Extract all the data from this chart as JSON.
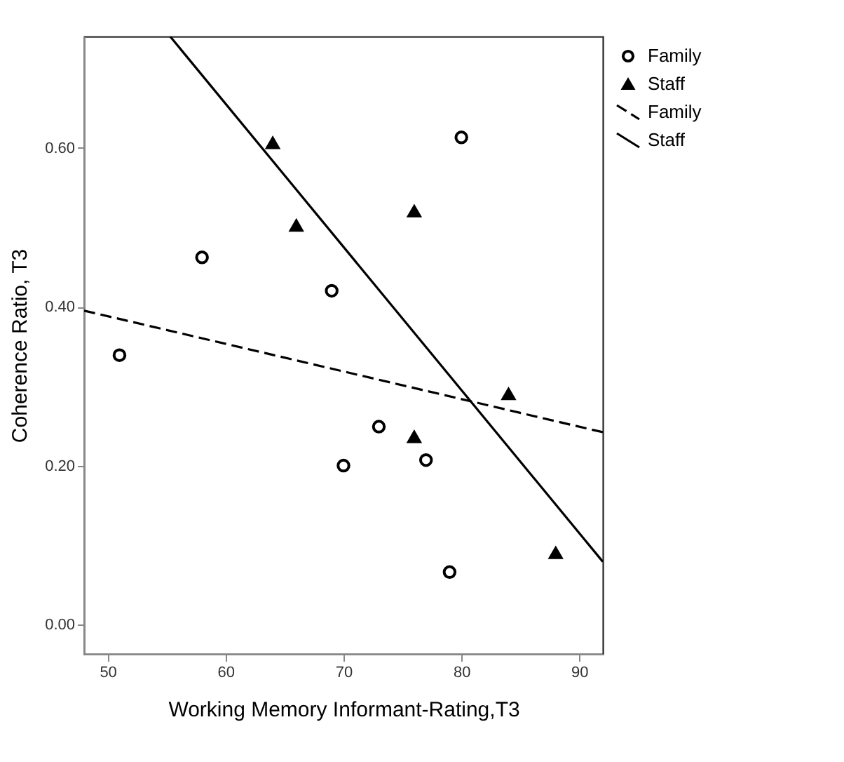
{
  "chart_data": {
    "type": "scatter",
    "xlabel": "Working Memory Informant-Rating,T3",
    "ylabel": "Coherence Ratio, T3",
    "xlim": [
      48,
      92
    ],
    "ylim": [
      -0.037,
      0.74
    ],
    "xticks": [
      50,
      60,
      70,
      80,
      90
    ],
    "yticks": [
      {
        "value": 0,
        "label": "0.00"
      },
      {
        "value": 0.2,
        "label": "0.20"
      },
      {
        "value": 0.4,
        "label": "0.40"
      },
      {
        "value": 0.6,
        "label": "0.60"
      }
    ],
    "grid": false,
    "legend": "top right",
    "series": [
      {
        "name": "Family",
        "type": "scatter",
        "marker": "circle",
        "color": "#000000",
        "x": [
          51,
          58,
          69,
          70,
          73,
          77,
          79,
          80
        ],
        "values": [
          0.339,
          0.462,
          0.42,
          0.2,
          0.249,
          0.207,
          0.066,
          0.613
        ]
      },
      {
        "name": "Staff",
        "type": "scatter",
        "marker": "triangle",
        "color": "#000000",
        "x": [
          64,
          66,
          76,
          76,
          84,
          88
        ],
        "values": [
          0.606,
          0.502,
          0.52,
          0.236,
          0.29,
          0.09
        ]
      },
      {
        "name": "Family",
        "type": "line",
        "line_style": "dashed",
        "color": "#000000",
        "x": [
          48,
          92
        ],
        "values": [
          0.395,
          0.242
        ]
      },
      {
        "name": "Staff",
        "type": "line",
        "line_style": "solid",
        "color": "#000000",
        "x": [
          55.3,
          92
        ],
        "values": [
          0.74,
          0.079
        ]
      }
    ]
  }
}
